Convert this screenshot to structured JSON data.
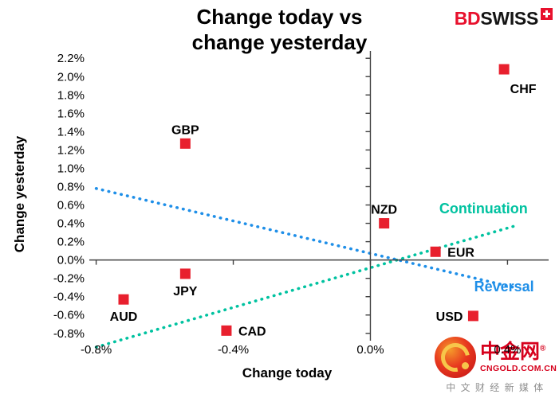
{
  "title": {
    "line1": "Change today vs",
    "line2": "change yesterday"
  },
  "brand": {
    "part1": "BD",
    "part2": "SWISS",
    "accent": "#e8112d"
  },
  "watermark": {
    "name": "中金网",
    "reg": "®",
    "domain": "CNGOLD.COM.CN",
    "tagline": "中 文 财 经 新 媒 体"
  },
  "chart_data": {
    "type": "scatter",
    "title": "Change today vs change yesterday",
    "xlabel": "Change today",
    "ylabel": "Change yesterday",
    "xlim": [
      -0.82,
      0.52
    ],
    "ylim": [
      -0.88,
      2.28
    ],
    "x_ticks": [
      -0.8,
      -0.4,
      0,
      0.4
    ],
    "x_tick_labels": [
      "-0.8%",
      "-0.4%",
      "0.0%",
      "0.4%"
    ],
    "y_ticks": [
      2.2,
      2,
      1.8,
      1.6,
      1.4,
      1.2,
      1,
      0.8,
      0.6,
      0.4,
      0.2,
      0,
      -0.2,
      -0.4,
      -0.6,
      -0.8
    ],
    "y_tick_labels": [
      "2.2%",
      "2.0%",
      "1.8%",
      "1.6%",
      "1.4%",
      "1.2%",
      "1.0%",
      "0.8%",
      "0.6%",
      "0.4%",
      "0.2%",
      "0.0%",
      "-0.2%",
      "-0.4%",
      "-0.6%",
      "-0.8%"
    ],
    "marker_color": "#e8202e",
    "axis_color": "#404040",
    "grid": false,
    "points": [
      {
        "label": "CHF",
        "x": 0.39,
        "y": 2.08,
        "label_pos": "below-right"
      },
      {
        "label": "GBP",
        "x": -0.54,
        "y": 1.27,
        "label_pos": "above"
      },
      {
        "label": "NZD",
        "x": 0.04,
        "y": 0.4,
        "label_pos": "above"
      },
      {
        "label": "EUR",
        "x": 0.19,
        "y": 0.09,
        "label_pos": "right"
      },
      {
        "label": "JPY",
        "x": -0.54,
        "y": -0.15,
        "label_pos": "below"
      },
      {
        "label": "AUD",
        "x": -0.72,
        "y": -0.43,
        "label_pos": "below"
      },
      {
        "label": "CAD",
        "x": -0.42,
        "y": -0.77,
        "label_pos": "right"
      },
      {
        "label": "USD",
        "x": 0.3,
        "y": -0.61,
        "label_pos": "left"
      }
    ],
    "trend_lines": [
      {
        "name": "Continuation",
        "color": "#00c2a0",
        "x1": -0.8,
        "y1": -0.95,
        "x2": 0.42,
        "y2": 0.37,
        "label_x": 0.33,
        "label_y": 0.51
      },
      {
        "name": "Reversal",
        "color": "#1f8fe8",
        "x1": -0.8,
        "y1": 0.78,
        "x2": 0.42,
        "y2": -0.3,
        "label_x": 0.39,
        "label_y": -0.34
      }
    ]
  }
}
